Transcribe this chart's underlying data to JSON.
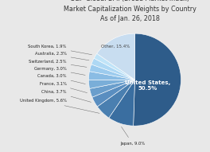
{
  "title": "S&P Global BMI (Broad Market Index)\nMarket Capitalization Weights by Country\nAs of Jan. 26, 2018",
  "labels": [
    "United States",
    "Japan",
    "United Kingdom",
    "China",
    "France",
    "Canada",
    "Germany",
    "Switzerland",
    "Australia",
    "South Korea",
    "Other"
  ],
  "values": [
    50.5,
    9.0,
    5.6,
    3.7,
    3.1,
    3.0,
    3.0,
    2.5,
    2.3,
    1.9,
    15.4
  ],
  "colors": [
    "#2e5c8a",
    "#3a6ea0",
    "#4a7fb0",
    "#5a8ec0",
    "#6a9ecc",
    "#7aaed8",
    "#8abce4",
    "#9ccbee",
    "#aed8f4",
    "#c0e4f8",
    "#c8ddf0"
  ],
  "startangle": 90,
  "title_fontsize": 5.8,
  "bg_color": "#e8e8e8"
}
